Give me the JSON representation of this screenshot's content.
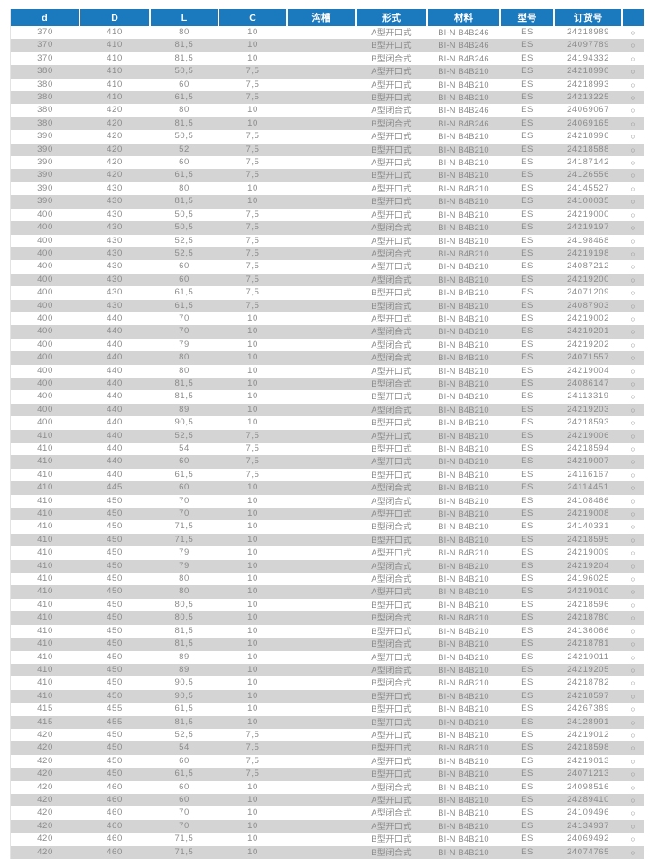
{
  "table": {
    "header": [
      "d",
      "D",
      "L",
      "C",
      "沟槽",
      "形式",
      "材料",
      "型号",
      "订货号",
      ""
    ],
    "availability_symbol": "○",
    "colors": {
      "header_bg": "#1b79be",
      "header_text": "#ffffff",
      "stripe": "#d4d4d4",
      "body_text": "#8b8b8b"
    },
    "rows": [
      [
        "370",
        "410",
        "80",
        "10",
        "",
        "A型开口式",
        "BI-N B4B246",
        "ES",
        "24218989",
        "○"
      ],
      [
        "370",
        "410",
        "81,5",
        "10",
        "",
        "B型开口式",
        "BI-N B4B246",
        "ES",
        "24097789",
        "○"
      ],
      [
        "370",
        "410",
        "81,5",
        "10",
        "",
        "B型闭合式",
        "BI-N B4B246",
        "ES",
        "24194332",
        "○"
      ],
      [
        "380",
        "410",
        "50,5",
        "7,5",
        "",
        "A型开口式",
        "BI-N B4B210",
        "ES",
        "24218990",
        "○"
      ],
      [
        "380",
        "410",
        "60",
        "7,5",
        "",
        "A型开口式",
        "BI-N B4B210",
        "ES",
        "24218993",
        "○"
      ],
      [
        "380",
        "410",
        "61,5",
        "7,5",
        "",
        "B型开口式",
        "BI-N B4B210",
        "ES",
        "24213225",
        "○"
      ],
      [
        "380",
        "420",
        "80",
        "10",
        "",
        "A型闭合式",
        "BI-N B4B246",
        "ES",
        "24069067",
        "○"
      ],
      [
        "380",
        "420",
        "81,5",
        "10",
        "",
        "B型闭合式",
        "BI-N B4B246",
        "ES",
        "24069165",
        "○"
      ],
      [
        "390",
        "420",
        "50,5",
        "7,5",
        "",
        "A型开口式",
        "BI-N B4B210",
        "ES",
        "24218996",
        "○"
      ],
      [
        "390",
        "420",
        "52",
        "7,5",
        "",
        "B型开口式",
        "BI-N B4B210",
        "ES",
        "24218588",
        "○"
      ],
      [
        "390",
        "420",
        "60",
        "7,5",
        "",
        "A型开口式",
        "BI-N B4B210",
        "ES",
        "24187142",
        "○"
      ],
      [
        "390",
        "420",
        "61,5",
        "7,5",
        "",
        "B型开口式",
        "BI-N B4B210",
        "ES",
        "24126556",
        "○"
      ],
      [
        "390",
        "430",
        "80",
        "10",
        "",
        "A型开口式",
        "BI-N B4B210",
        "ES",
        "24145527",
        "○"
      ],
      [
        "390",
        "430",
        "81,5",
        "10",
        "",
        "B型开口式",
        "BI-N B4B210",
        "ES",
        "24100035",
        "○"
      ],
      [
        "400",
        "430",
        "50,5",
        "7,5",
        "",
        "A型开口式",
        "BI-N B4B210",
        "ES",
        "24219000",
        "○"
      ],
      [
        "400",
        "430",
        "50,5",
        "7,5",
        "",
        "A型闭合式",
        "BI-N B4B210",
        "ES",
        "24219197",
        "○"
      ],
      [
        "400",
        "430",
        "52,5",
        "7,5",
        "",
        "A型开口式",
        "BI-N B4B210",
        "ES",
        "24198468",
        "○"
      ],
      [
        "400",
        "430",
        "52,5",
        "7,5",
        "",
        "A型闭合式",
        "BI-N B4B210",
        "ES",
        "24219198",
        "○"
      ],
      [
        "400",
        "430",
        "60",
        "7,5",
        "",
        "A型开口式",
        "BI-N B4B210",
        "ES",
        "24087212",
        "○"
      ],
      [
        "400",
        "430",
        "60",
        "7,5",
        "",
        "A型闭合式",
        "BI-N B4B210",
        "ES",
        "24219200",
        "○"
      ],
      [
        "400",
        "430",
        "61,5",
        "7,5",
        "",
        "B型开口式",
        "BI-N B4B210",
        "ES",
        "24071209",
        "○"
      ],
      [
        "400",
        "430",
        "61,5",
        "7,5",
        "",
        "B型闭合式",
        "BI-N B4B210",
        "ES",
        "24087903",
        "○"
      ],
      [
        "400",
        "440",
        "70",
        "10",
        "",
        "A型开口式",
        "BI-N B4B210",
        "ES",
        "24219002",
        "○"
      ],
      [
        "400",
        "440",
        "70",
        "10",
        "",
        "A型闭合式",
        "BI-N B4B210",
        "ES",
        "24219201",
        "○"
      ],
      [
        "400",
        "440",
        "79",
        "10",
        "",
        "A型闭合式",
        "BI-N B4B210",
        "ES",
        "24219202",
        "○"
      ],
      [
        "400",
        "440",
        "80",
        "10",
        "",
        "A型闭合式",
        "BI-N B4B210",
        "ES",
        "24071557",
        "○"
      ],
      [
        "400",
        "440",
        "80",
        "10",
        "",
        "A型开口式",
        "BI-N B4B210",
        "ES",
        "24219004",
        "○"
      ],
      [
        "400",
        "440",
        "81,5",
        "10",
        "",
        "B型闭合式",
        "BI-N B4B210",
        "ES",
        "24086147",
        "○"
      ],
      [
        "400",
        "440",
        "81,5",
        "10",
        "",
        "B型开口式",
        "BI-N B4B210",
        "ES",
        "24113319",
        "○"
      ],
      [
        "400",
        "440",
        "89",
        "10",
        "",
        "A型闭合式",
        "BI-N B4B210",
        "ES",
        "24219203",
        "○"
      ],
      [
        "400",
        "440",
        "90,5",
        "10",
        "",
        "B型开口式",
        "BI-N B4B210",
        "ES",
        "24218593",
        "○"
      ],
      [
        "410",
        "440",
        "52,5",
        "7,5",
        "",
        "A型开口式",
        "BI-N B4B210",
        "ES",
        "24219006",
        "○"
      ],
      [
        "410",
        "440",
        "54",
        "7,5",
        "",
        "B型开口式",
        "BI-N B4B210",
        "ES",
        "24218594",
        "○"
      ],
      [
        "410",
        "440",
        "60",
        "7,5",
        "",
        "A型开口式",
        "BI-N B4B210",
        "ES",
        "24219007",
        "○"
      ],
      [
        "410",
        "440",
        "61,5",
        "7,5",
        "",
        "B型开口式",
        "BI-N B4B210",
        "ES",
        "24116167",
        "○"
      ],
      [
        "410",
        "445",
        "60",
        "10",
        "",
        "A型闭合式",
        "BI-N B4B210",
        "ES",
        "24114451",
        "○"
      ],
      [
        "410",
        "450",
        "70",
        "10",
        "",
        "A型闭合式",
        "BI-N B4B210",
        "ES",
        "24108466",
        "○"
      ],
      [
        "410",
        "450",
        "70",
        "10",
        "",
        "A型开口式",
        "BI-N B4B210",
        "ES",
        "24219008",
        "○"
      ],
      [
        "410",
        "450",
        "71,5",
        "10",
        "",
        "B型闭合式",
        "BI-N B4B210",
        "ES",
        "24140331",
        "○"
      ],
      [
        "410",
        "450",
        "71,5",
        "10",
        "",
        "B型开口式",
        "BI-N B4B210",
        "ES",
        "24218595",
        "○"
      ],
      [
        "410",
        "450",
        "79",
        "10",
        "",
        "A型开口式",
        "BI-N B4B210",
        "ES",
        "24219009",
        "○"
      ],
      [
        "410",
        "450",
        "79",
        "10",
        "",
        "A型闭合式",
        "BI-N B4B210",
        "ES",
        "24219204",
        "○"
      ],
      [
        "410",
        "450",
        "80",
        "10",
        "",
        "A型闭合式",
        "BI-N B4B210",
        "ES",
        "24196025",
        "○"
      ],
      [
        "410",
        "450",
        "80",
        "10",
        "",
        "A型开口式",
        "BI-N B4B210",
        "ES",
        "24219010",
        "○"
      ],
      [
        "410",
        "450",
        "80,5",
        "10",
        "",
        "B型开口式",
        "BI-N B4B210",
        "ES",
        "24218596",
        "○"
      ],
      [
        "410",
        "450",
        "80,5",
        "10",
        "",
        "B型闭合式",
        "BI-N B4B210",
        "ES",
        "24218780",
        "○"
      ],
      [
        "410",
        "450",
        "81,5",
        "10",
        "",
        "B型开口式",
        "BI-N B4B210",
        "ES",
        "24136066",
        "○"
      ],
      [
        "410",
        "450",
        "81,5",
        "10",
        "",
        "B型闭合式",
        "BI-N B4B210",
        "ES",
        "24218781",
        "○"
      ],
      [
        "410",
        "450",
        "89",
        "10",
        "",
        "A型开口式",
        "BI-N B4B210",
        "ES",
        "24219011",
        "○"
      ],
      [
        "410",
        "450",
        "89",
        "10",
        "",
        "A型闭合式",
        "BI-N B4B210",
        "ES",
        "24219205",
        "○"
      ],
      [
        "410",
        "450",
        "90,5",
        "10",
        "",
        "B型闭合式",
        "BI-N B4B210",
        "ES",
        "24218782",
        "○"
      ],
      [
        "410",
        "450",
        "90,5",
        "10",
        "",
        "B型开口式",
        "BI-N B4B210",
        "ES",
        "24218597",
        "○"
      ],
      [
        "415",
        "455",
        "61,5",
        "10",
        "",
        "B型开口式",
        "BI-N B4B210",
        "ES",
        "24267389",
        "○"
      ],
      [
        "415",
        "455",
        "81,5",
        "10",
        "",
        "B型开口式",
        "BI-N B4B210",
        "ES",
        "24128991",
        "○"
      ],
      [
        "420",
        "450",
        "52,5",
        "7,5",
        "",
        "A型开口式",
        "BI-N B4B210",
        "ES",
        "24219012",
        "○"
      ],
      [
        "420",
        "450",
        "54",
        "7,5",
        "",
        "B型开口式",
        "BI-N B4B210",
        "ES",
        "24218598",
        "○"
      ],
      [
        "420",
        "450",
        "60",
        "7,5",
        "",
        "A型开口式",
        "BI-N B4B210",
        "ES",
        "24219013",
        "○"
      ],
      [
        "420",
        "450",
        "61,5",
        "7,5",
        "",
        "B型开口式",
        "BI-N B4B210",
        "ES",
        "24071213",
        "○"
      ],
      [
        "420",
        "460",
        "60",
        "10",
        "",
        "A型闭合式",
        "BI-N B4B210",
        "ES",
        "24098516",
        "○"
      ],
      [
        "420",
        "460",
        "60",
        "10",
        "",
        "A型开口式",
        "BI-N B4B210",
        "ES",
        "24289410",
        "○"
      ],
      [
        "420",
        "460",
        "70",
        "10",
        "",
        "A型闭合式",
        "BI-N B4B210",
        "ES",
        "24109496",
        "○"
      ],
      [
        "420",
        "460",
        "70",
        "10",
        "",
        "A型开口式",
        "BI-N B4B210",
        "ES",
        "24134937",
        "○"
      ],
      [
        "420",
        "460",
        "71,5",
        "10",
        "",
        "B型开口式",
        "BI-N B4B210",
        "ES",
        "24069492",
        "○"
      ],
      [
        "420",
        "460",
        "71,5",
        "10",
        "",
        "B型闭合式",
        "BI-N B4B210",
        "ES",
        "24074765",
        "○"
      ]
    ]
  }
}
